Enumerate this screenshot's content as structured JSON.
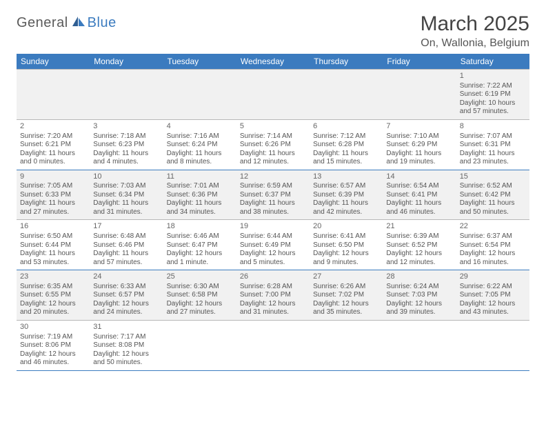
{
  "logo": {
    "text1": "General",
    "text2": "Blue"
  },
  "title": "March 2025",
  "location": "On, Wallonia, Belgium",
  "colors": {
    "header_bg": "#3b7bbf",
    "header_text": "#ffffff",
    "odd_row_bg": "#f1f1f1",
    "even_row_bg": "#ffffff",
    "text": "#555555",
    "logo_gray": "#5a5a5a",
    "logo_blue": "#3b7bbf"
  },
  "typography": {
    "title_size_pt": 22,
    "location_size_pt": 12,
    "header_size_pt": 9,
    "cell_size_pt": 7.5
  },
  "day_headers": [
    "Sunday",
    "Monday",
    "Tuesday",
    "Wednesday",
    "Thursday",
    "Friday",
    "Saturday"
  ],
  "weeks": [
    [
      null,
      null,
      null,
      null,
      null,
      null,
      {
        "n": "1",
        "sr": "7:22 AM",
        "ss": "6:19 PM",
        "dl": "10 hours and 57 minutes."
      }
    ],
    [
      {
        "n": "2",
        "sr": "7:20 AM",
        "ss": "6:21 PM",
        "dl": "11 hours and 0 minutes."
      },
      {
        "n": "3",
        "sr": "7:18 AM",
        "ss": "6:23 PM",
        "dl": "11 hours and 4 minutes."
      },
      {
        "n": "4",
        "sr": "7:16 AM",
        "ss": "6:24 PM",
        "dl": "11 hours and 8 minutes."
      },
      {
        "n": "5",
        "sr": "7:14 AM",
        "ss": "6:26 PM",
        "dl": "11 hours and 12 minutes."
      },
      {
        "n": "6",
        "sr": "7:12 AM",
        "ss": "6:28 PM",
        "dl": "11 hours and 15 minutes."
      },
      {
        "n": "7",
        "sr": "7:10 AM",
        "ss": "6:29 PM",
        "dl": "11 hours and 19 minutes."
      },
      {
        "n": "8",
        "sr": "7:07 AM",
        "ss": "6:31 PM",
        "dl": "11 hours and 23 minutes."
      }
    ],
    [
      {
        "n": "9",
        "sr": "7:05 AM",
        "ss": "6:33 PM",
        "dl": "11 hours and 27 minutes."
      },
      {
        "n": "10",
        "sr": "7:03 AM",
        "ss": "6:34 PM",
        "dl": "11 hours and 31 minutes."
      },
      {
        "n": "11",
        "sr": "7:01 AM",
        "ss": "6:36 PM",
        "dl": "11 hours and 34 minutes."
      },
      {
        "n": "12",
        "sr": "6:59 AM",
        "ss": "6:37 PM",
        "dl": "11 hours and 38 minutes."
      },
      {
        "n": "13",
        "sr": "6:57 AM",
        "ss": "6:39 PM",
        "dl": "11 hours and 42 minutes."
      },
      {
        "n": "14",
        "sr": "6:54 AM",
        "ss": "6:41 PM",
        "dl": "11 hours and 46 minutes."
      },
      {
        "n": "15",
        "sr": "6:52 AM",
        "ss": "6:42 PM",
        "dl": "11 hours and 50 minutes."
      }
    ],
    [
      {
        "n": "16",
        "sr": "6:50 AM",
        "ss": "6:44 PM",
        "dl": "11 hours and 53 minutes."
      },
      {
        "n": "17",
        "sr": "6:48 AM",
        "ss": "6:46 PM",
        "dl": "11 hours and 57 minutes."
      },
      {
        "n": "18",
        "sr": "6:46 AM",
        "ss": "6:47 PM",
        "dl": "12 hours and 1 minute."
      },
      {
        "n": "19",
        "sr": "6:44 AM",
        "ss": "6:49 PM",
        "dl": "12 hours and 5 minutes."
      },
      {
        "n": "20",
        "sr": "6:41 AM",
        "ss": "6:50 PM",
        "dl": "12 hours and 9 minutes."
      },
      {
        "n": "21",
        "sr": "6:39 AM",
        "ss": "6:52 PM",
        "dl": "12 hours and 12 minutes."
      },
      {
        "n": "22",
        "sr": "6:37 AM",
        "ss": "6:54 PM",
        "dl": "12 hours and 16 minutes."
      }
    ],
    [
      {
        "n": "23",
        "sr": "6:35 AM",
        "ss": "6:55 PM",
        "dl": "12 hours and 20 minutes."
      },
      {
        "n": "24",
        "sr": "6:33 AM",
        "ss": "6:57 PM",
        "dl": "12 hours and 24 minutes."
      },
      {
        "n": "25",
        "sr": "6:30 AM",
        "ss": "6:58 PM",
        "dl": "12 hours and 27 minutes."
      },
      {
        "n": "26",
        "sr": "6:28 AM",
        "ss": "7:00 PM",
        "dl": "12 hours and 31 minutes."
      },
      {
        "n": "27",
        "sr": "6:26 AM",
        "ss": "7:02 PM",
        "dl": "12 hours and 35 minutes."
      },
      {
        "n": "28",
        "sr": "6:24 AM",
        "ss": "7:03 PM",
        "dl": "12 hours and 39 minutes."
      },
      {
        "n": "29",
        "sr": "6:22 AM",
        "ss": "7:05 PM",
        "dl": "12 hours and 43 minutes."
      }
    ],
    [
      {
        "n": "30",
        "sr": "7:19 AM",
        "ss": "8:06 PM",
        "dl": "12 hours and 46 minutes."
      },
      {
        "n": "31",
        "sr": "7:17 AM",
        "ss": "8:08 PM",
        "dl": "12 hours and 50 minutes."
      },
      null,
      null,
      null,
      null,
      null
    ]
  ],
  "labels": {
    "sunrise": "Sunrise: ",
    "sunset": "Sunset: ",
    "daylight": "Daylight: "
  }
}
